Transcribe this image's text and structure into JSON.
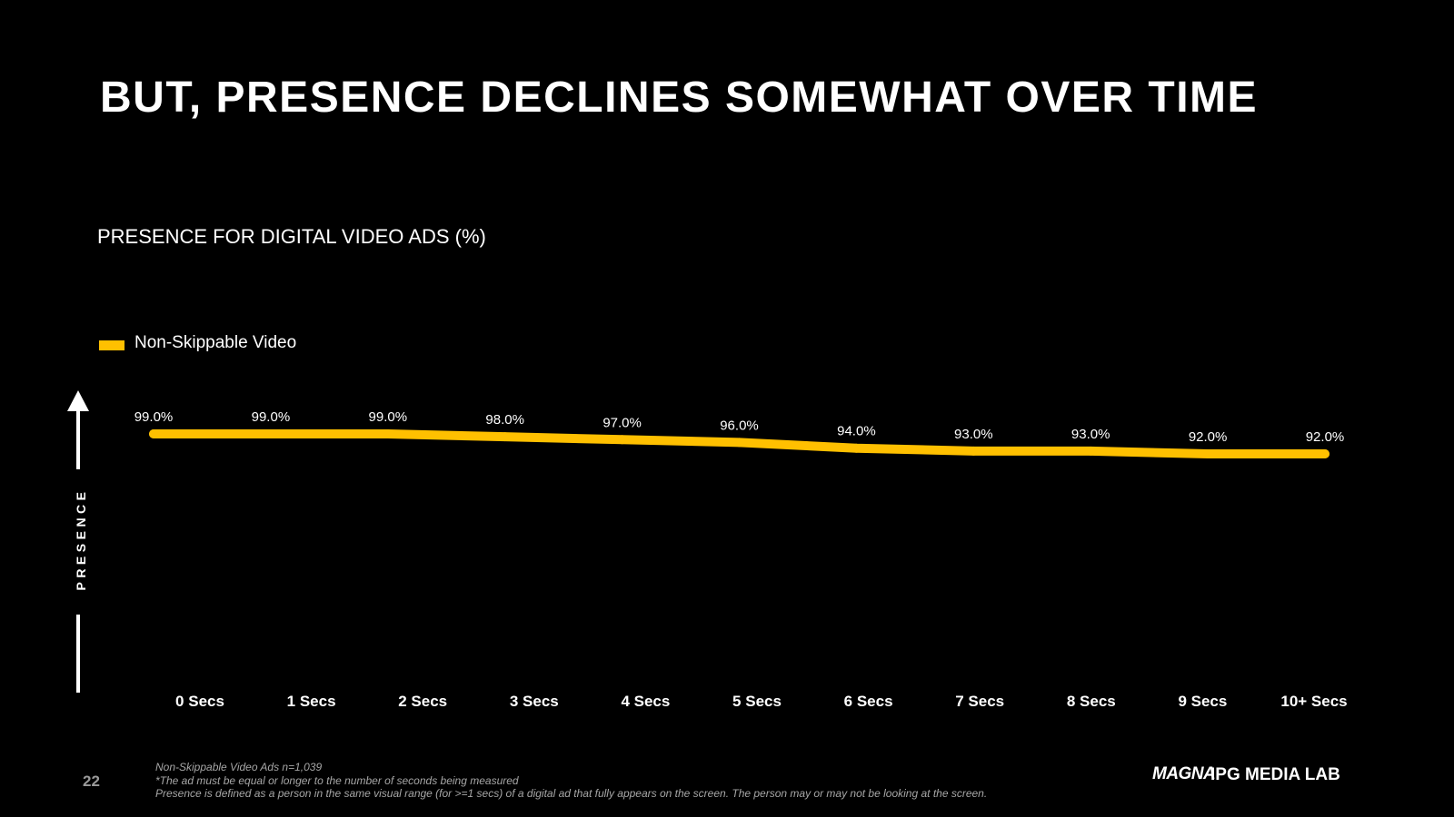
{
  "slide": {
    "title": "BUT, PRESENCE DECLINES SOMEWHAT OVER TIME",
    "page_number": "22",
    "footnotes": [
      "Non-Skippable Video Ads n=1,039",
      "*The ad must be equal or longer to the number of seconds being measured",
      "Presence is defined as a person in the same visual range (for >=1 secs) of a digital ad that fully appears on the screen.  The person may or may not be looking at the screen."
    ],
    "logos": {
      "magna": "MAGNA",
      "ipg": "IPG MEDIA LAB"
    }
  },
  "chart_data": {
    "type": "line",
    "title": "PRESENCE FOR DIGITAL VIDEO ADS (%)",
    "ylabel": "PRESENCE",
    "xlabel": "",
    "categories": [
      "0 Secs",
      "1 Secs",
      "2 Secs",
      "3 Secs",
      "4 Secs",
      "5 Secs",
      "6 Secs",
      "7 Secs",
      "8 Secs",
      "9 Secs",
      "10+ Secs"
    ],
    "series": [
      {
        "name": "Non-Skippable Video",
        "color": "#FFC000",
        "values": [
          99.0,
          99.0,
          99.0,
          98.0,
          97.0,
          96.0,
          94.0,
          93.0,
          93.0,
          92.0,
          92.0
        ],
        "data_labels": [
          "99.0%",
          "99.0%",
          "99.0%",
          "98.0%",
          "97.0%",
          "96.0%",
          "94.0%",
          "93.0%",
          "93.0%",
          "92.0%",
          "92.0%"
        ]
      }
    ],
    "ylim": [
      0,
      100
    ],
    "grid": false,
    "legend_position": "top-left",
    "axis_arrow_color": "#FFFFFF"
  }
}
